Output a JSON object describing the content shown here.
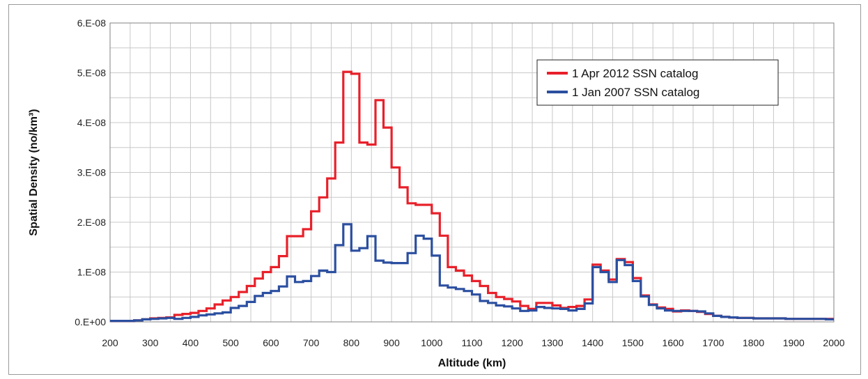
{
  "chart_data": {
    "type": "line",
    "title": "",
    "xlabel": "Altitude (km)",
    "ylabel": "Spatial Density (no/km³)",
    "xlim": [
      200,
      2000
    ],
    "ylim": [
      0,
      6e-08
    ],
    "x_ticks": [
      "200",
      "300",
      "400",
      "500",
      "600",
      "700",
      "800",
      "900",
      "1000",
      "1100",
      "1200",
      "1300",
      "1400",
      "1500",
      "1600",
      "1700",
      "1800",
      "1900",
      "2000"
    ],
    "y_ticks": [
      "0.E+00",
      "1.E-08",
      "2.E-08",
      "3.E-08",
      "4.E-08",
      "5.E-08",
      "6.E-08"
    ],
    "grid": true,
    "legend_position": "top-right",
    "step_width": 20,
    "x": [
      200,
      220,
      240,
      260,
      280,
      300,
      320,
      340,
      360,
      380,
      400,
      420,
      440,
      460,
      480,
      500,
      520,
      540,
      560,
      580,
      600,
      620,
      640,
      660,
      680,
      700,
      720,
      740,
      760,
      780,
      800,
      820,
      840,
      860,
      880,
      900,
      920,
      940,
      960,
      980,
      1000,
      1020,
      1040,
      1060,
      1080,
      1100,
      1120,
      1140,
      1160,
      1180,
      1200,
      1220,
      1240,
      1260,
      1280,
      1300,
      1320,
      1340,
      1360,
      1380,
      1400,
      1420,
      1440,
      1460,
      1480,
      1500,
      1520,
      1540,
      1560,
      1580,
      1600,
      1620,
      1640,
      1660,
      1680,
      1700,
      1720,
      1740,
      1760,
      1780,
      1800,
      1820,
      1840,
      1860,
      1880,
      1900,
      1920,
      1940,
      1960,
      1980
    ],
    "series": [
      {
        "name": "1 Apr 2012 SSN catalog",
        "color": "#e8202a",
        "values": [
          2e-10,
          2e-10,
          2e-10,
          3e-10,
          5e-10,
          7e-10,
          8e-10,
          9e-10,
          1.4e-09,
          1.6e-09,
          1.8e-09,
          2.2e-09,
          2.7e-09,
          3.5e-09,
          4.3e-09,
          5e-09,
          6e-09,
          7.2e-09,
          8.7e-09,
          1e-08,
          1.1e-08,
          1.32e-08,
          1.72e-08,
          1.72e-08,
          1.86e-08,
          2.22e-08,
          2.5e-08,
          2.88e-08,
          3.6e-08,
          5.02e-08,
          4.98e-08,
          3.6e-08,
          3.56e-08,
          4.45e-08,
          3.9e-08,
          3.1e-08,
          2.7e-08,
          2.38e-08,
          2.35e-08,
          2.35e-08,
          2.18e-08,
          1.73e-08,
          1.1e-08,
          1.03e-08,
          9.3e-09,
          8.2e-09,
          7.2e-09,
          5.8e-09,
          5e-09,
          4.6e-09,
          4.1e-09,
          3.2e-09,
          2.6e-09,
          3.8e-09,
          3.8e-09,
          3.3e-09,
          2.8e-09,
          3e-09,
          3.2e-09,
          4.5e-09,
          1.15e-08,
          1.03e-08,
          8.5e-09,
          1.26e-08,
          1.2e-08,
          8.8e-09,
          5.3e-09,
          3.5e-09,
          2.9e-09,
          2.6e-09,
          2.1e-09,
          2.3e-09,
          2.2e-09,
          2e-09,
          1.6e-09,
          1.2e-09,
          1e-09,
          9e-10,
          8e-10,
          8e-10,
          7e-10,
          7e-10,
          7e-10,
          7e-10,
          6e-10,
          6e-10,
          6e-10,
          6e-10,
          6e-10,
          6e-10
        ]
      },
      {
        "name": "1 Jan 2007 SSN catalog",
        "color": "#2b4fa0",
        "values": [
          2e-10,
          2e-10,
          2e-10,
          3e-10,
          5e-10,
          6e-10,
          7e-10,
          8e-10,
          6e-10,
          8e-10,
          1e-09,
          1.3e-09,
          1.5e-09,
          1.7e-09,
          1.9e-09,
          2.8e-09,
          3.2e-09,
          4e-09,
          5.2e-09,
          5.8e-09,
          6.2e-09,
          7.1e-09,
          9.1e-09,
          8e-09,
          8.2e-09,
          9.2e-09,
          1.03e-08,
          1e-08,
          1.54e-08,
          1.96e-08,
          1.43e-08,
          1.48e-08,
          1.72e-08,
          1.23e-08,
          1.19e-08,
          1.18e-08,
          1.18e-08,
          1.38e-08,
          1.73e-08,
          1.67e-08,
          1.33e-08,
          7.3e-09,
          6.9e-09,
          6.6e-09,
          6.2e-09,
          5.5e-09,
          4.2e-09,
          3.8e-09,
          3.3e-09,
          3.1e-09,
          2.7e-09,
          2.2e-09,
          2.3e-09,
          3e-09,
          2.8e-09,
          2.7e-09,
          2.6e-09,
          2.3e-09,
          2.6e-09,
          3.7e-09,
          1.1e-08,
          1e-08,
          8e-09,
          1.24e-08,
          1.14e-08,
          8.2e-09,
          5.1e-09,
          3.4e-09,
          2.7e-09,
          2.3e-09,
          2.2e-09,
          2.2e-09,
          2.2e-09,
          2.1e-09,
          1.7e-09,
          1.2e-09,
          1e-09,
          9e-10,
          8e-10,
          8e-10,
          7e-10,
          7e-10,
          7e-10,
          7e-10,
          6e-10,
          6e-10,
          6e-10,
          6e-10,
          6e-10,
          5e-10
        ]
      }
    ]
  }
}
